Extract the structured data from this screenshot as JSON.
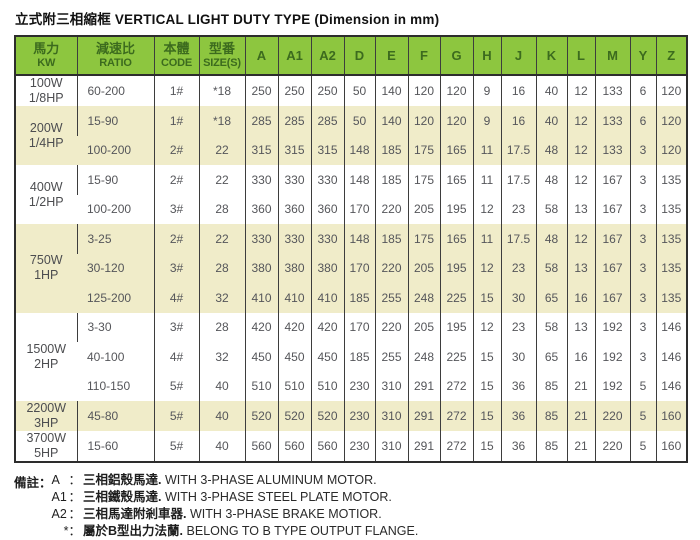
{
  "title": "立式附三相縮框 VERTICAL LIGHT DUTY TYPE (Dimension in mm)",
  "colors": {
    "header_bg": "#8dc63f",
    "header_text": "#3c6b1e",
    "band_bg": "#f0ecc9",
    "border": "#2d2d2d",
    "cell_text": "#55565a"
  },
  "table": {
    "main_columns": [
      {
        "zh": "馬力",
        "en": "KW",
        "key": "power"
      },
      {
        "zh": "減速比",
        "en": "RATIO",
        "key": "ratio"
      },
      {
        "zh": "本體",
        "en": "CODE",
        "key": "code"
      },
      {
        "zh": "型番",
        "en": "SIZE(S)",
        "key": "size"
      }
    ],
    "dim_columns": [
      "A",
      "A1",
      "A2",
      "D",
      "E",
      "F",
      "G",
      "H",
      "J",
      "K",
      "L",
      "M",
      "Y",
      "Z"
    ],
    "groups": [
      {
        "power": [
          "100W",
          "1/8HP"
        ],
        "band": false,
        "rows": [
          {
            "ratio": "60-200",
            "code": "1#",
            "size": "*18",
            "dims": [
              "250",
              "250",
              "250",
              "50",
              "140",
              "120",
              "120",
              "9",
              "16",
              "40",
              "12",
              "133",
              "6",
              "120"
            ]
          }
        ]
      },
      {
        "power": [
          "200W",
          "1/4HP"
        ],
        "band": true,
        "rows": [
          {
            "ratio": "15-90",
            "code": "1#",
            "size": "*18",
            "dims": [
              "285",
              "285",
              "285",
              "50",
              "140",
              "120",
              "120",
              "9",
              "16",
              "40",
              "12",
              "133",
              "6",
              "120"
            ]
          },
          {
            "ratio": "100-200",
            "code": "2#",
            "size": "22",
            "dims": [
              "315",
              "315",
              "315",
              "148",
              "185",
              "175",
              "165",
              "11",
              "17.5",
              "48",
              "12",
              "133",
              "3",
              "120"
            ]
          }
        ]
      },
      {
        "power": [
          "400W",
          "1/2HP"
        ],
        "band": false,
        "rows": [
          {
            "ratio": "15-90",
            "code": "2#",
            "size": "22",
            "dims": [
              "330",
              "330",
              "330",
              "148",
              "185",
              "175",
              "165",
              "11",
              "17.5",
              "48",
              "12",
              "167",
              "3",
              "135"
            ]
          },
          {
            "ratio": "100-200",
            "code": "3#",
            "size": "28",
            "dims": [
              "360",
              "360",
              "360",
              "170",
              "220",
              "205",
              "195",
              "12",
              "23",
              "58",
              "13",
              "167",
              "3",
              "135"
            ]
          }
        ]
      },
      {
        "power": [
          "750W",
          "1HP"
        ],
        "band": true,
        "rows": [
          {
            "ratio": "3-25",
            "code": "2#",
            "size": "22",
            "dims": [
              "330",
              "330",
              "330",
              "148",
              "185",
              "175",
              "165",
              "11",
              "17.5",
              "48",
              "12",
              "167",
              "3",
              "135"
            ]
          },
          {
            "ratio": "30-120",
            "code": "3#",
            "size": "28",
            "dims": [
              "380",
              "380",
              "380",
              "170",
              "220",
              "205",
              "195",
              "12",
              "23",
              "58",
              "13",
              "167",
              "3",
              "135"
            ]
          },
          {
            "ratio": "125-200",
            "code": "4#",
            "size": "32",
            "dims": [
              "410",
              "410",
              "410",
              "185",
              "255",
              "248",
              "225",
              "15",
              "30",
              "65",
              "16",
              "167",
              "3",
              "135"
            ]
          }
        ]
      },
      {
        "power": [
          "1500W",
          "2HP"
        ],
        "band": false,
        "rows": [
          {
            "ratio": "3-30",
            "code": "3#",
            "size": "28",
            "dims": [
              "420",
              "420",
              "420",
              "170",
              "220",
              "205",
              "195",
              "12",
              "23",
              "58",
              "13",
              "192",
              "3",
              "146"
            ]
          },
          {
            "ratio": "40-100",
            "code": "4#",
            "size": "32",
            "dims": [
              "450",
              "450",
              "450",
              "185",
              "255",
              "248",
              "225",
              "15",
              "30",
              "65",
              "16",
              "192",
              "3",
              "146"
            ]
          },
          {
            "ratio": "110-150",
            "code": "5#",
            "size": "40",
            "dims": [
              "510",
              "510",
              "510",
              "230",
              "310",
              "291",
              "272",
              "15",
              "36",
              "85",
              "21",
              "192",
              "5",
              "146"
            ]
          }
        ]
      },
      {
        "power": [
          "2200W",
          "3HP"
        ],
        "band": true,
        "rows": [
          {
            "ratio": "45-80",
            "code": "5#",
            "size": "40",
            "dims": [
              "520",
              "520",
              "520",
              "230",
              "310",
              "291",
              "272",
              "15",
              "36",
              "85",
              "21",
              "220",
              "5",
              "160"
            ]
          }
        ]
      },
      {
        "power": [
          "3700W",
          "5HP"
        ],
        "band": false,
        "rows": [
          {
            "ratio": "15-60",
            "code": "5#",
            "size": "40",
            "dims": [
              "560",
              "560",
              "560",
              "230",
              "310",
              "291",
              "272",
              "15",
              "36",
              "85",
              "21",
              "220",
              "5",
              "160"
            ]
          }
        ]
      }
    ]
  },
  "notes": {
    "label": "備註：",
    "items": [
      {
        "key": "A",
        "zh": "三相鋁殼馬達.",
        "en": "WITH 3-PHASE ALUMINUM MOTOR."
      },
      {
        "key": "A1",
        "zh": "三相鐵殼馬達.",
        "en": "WITH 3-PHASE STEEL PLATE MOTOR."
      },
      {
        "key": "A2",
        "zh": "三相馬達附剎車器.",
        "en": "WITH 3-PHASE BRAKE MOTIOR."
      },
      {
        "key": "*",
        "zh": "屬於B型出力法蘭.",
        "en": "BELONG TO B TYPE OUTPUT FLANGE."
      }
    ]
  }
}
